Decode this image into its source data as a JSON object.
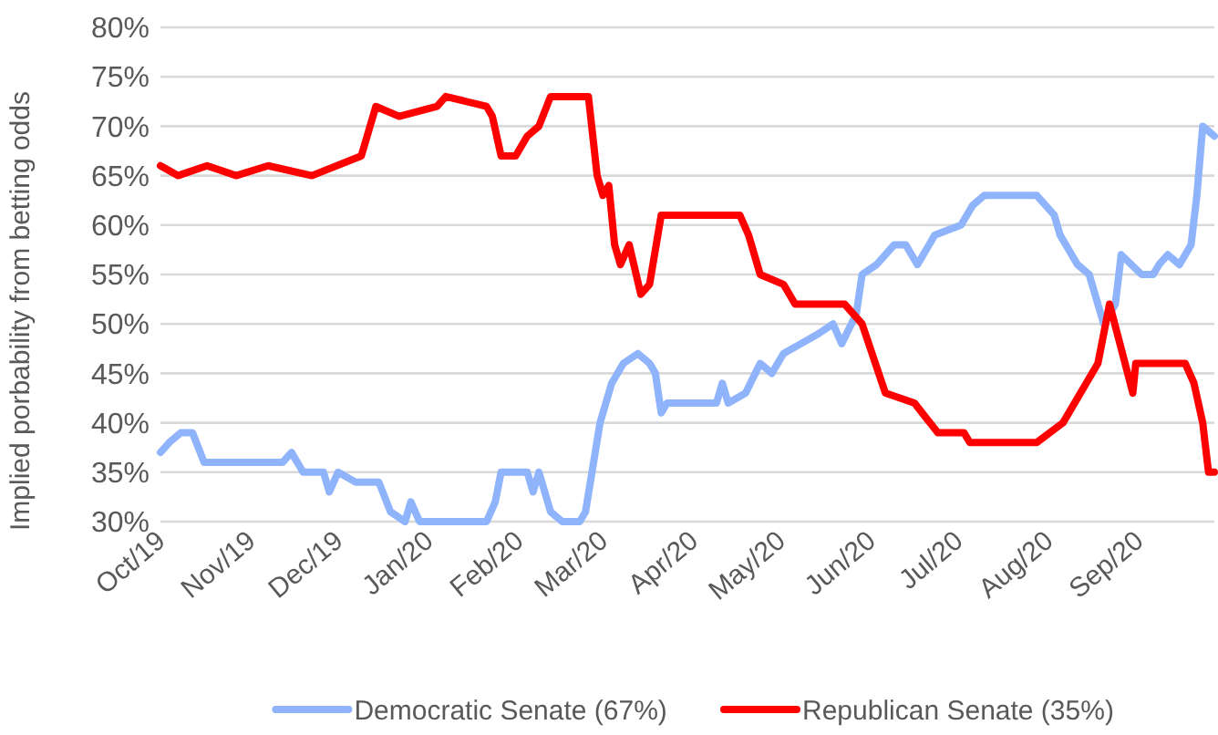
{
  "chart_data": {
    "type": "line",
    "ylabel": "Implied porbability from betting odds",
    "xlim": [
      "2019-09-29",
      "2020-09-25"
    ],
    "ylim": [
      30,
      80
    ],
    "yticks": [
      {
        "value": 30,
        "label": "30%"
      },
      {
        "value": 35,
        "label": "35%"
      },
      {
        "value": 40,
        "label": "40%"
      },
      {
        "value": 45,
        "label": "45%"
      },
      {
        "value": 50,
        "label": "50%"
      },
      {
        "value": 55,
        "label": "55%"
      },
      {
        "value": 60,
        "label": "60%"
      },
      {
        "value": 65,
        "label": "65%"
      },
      {
        "value": 70,
        "label": "70%"
      },
      {
        "value": 75,
        "label": "75%"
      },
      {
        "value": 80,
        "label": "80%"
      }
    ],
    "xticks": [
      {
        "value": "2019-10-01",
        "label": "Oct/19"
      },
      {
        "value": "2019-11-01",
        "label": "Nov/19"
      },
      {
        "value": "2019-12-01",
        "label": "Dec/19"
      },
      {
        "value": "2020-01-01",
        "label": "Jan/20"
      },
      {
        "value": "2020-02-01",
        "label": "Feb/20"
      },
      {
        "value": "2020-03-01",
        "label": "Mar/20"
      },
      {
        "value": "2020-04-01",
        "label": "Apr/20"
      },
      {
        "value": "2020-05-01",
        "label": "May/20"
      },
      {
        "value": "2020-06-01",
        "label": "Jun/20"
      },
      {
        "value": "2020-07-01",
        "label": "Jul/20"
      },
      {
        "value": "2020-08-01",
        "label": "Aug/20"
      },
      {
        "value": "2020-09-01",
        "label": "Sep/20"
      }
    ],
    "grid": "y",
    "legend": "bottom",
    "marker": "none",
    "line_style": "solid",
    "series": [
      {
        "name": "Democratic Senate (67%)",
        "color": "#8fb4fc",
        "x": [
          "2019-09-29",
          "2019-10-02",
          "2019-10-06",
          "2019-10-10",
          "2019-10-14",
          "2019-10-19",
          "2019-11-10",
          "2019-11-13",
          "2019-11-17",
          "2019-11-24",
          "2019-11-26",
          "2019-11-29",
          "2019-12-05",
          "2019-12-13",
          "2019-12-17",
          "2019-12-22",
          "2019-12-24",
          "2019-12-27",
          "2020-01-19",
          "2020-01-22",
          "2020-01-24",
          "2020-02-02",
          "2020-02-04",
          "2020-02-06",
          "2020-02-10",
          "2020-02-14",
          "2020-02-20",
          "2020-02-22",
          "2020-02-27",
          "2020-03-02",
          "2020-03-06",
          "2020-03-11",
          "2020-03-15",
          "2020-03-17",
          "2020-03-19",
          "2020-03-21",
          "2020-04-07",
          "2020-04-09",
          "2020-04-11",
          "2020-04-17",
          "2020-04-22",
          "2020-04-26",
          "2020-04-30",
          "2020-05-06",
          "2020-05-12",
          "2020-05-17",
          "2020-05-20",
          "2020-05-25",
          "2020-05-27",
          "2020-06-01",
          "2020-06-07",
          "2020-06-11",
          "2020-06-15",
          "2020-06-21",
          "2020-06-30",
          "2020-07-04",
          "2020-07-08",
          "2020-07-26",
          "2020-08-01",
          "2020-08-03",
          "2020-08-05",
          "2020-08-09",
          "2020-08-13",
          "2020-08-18",
          "2020-08-22",
          "2020-08-24",
          "2020-08-31",
          "2020-09-04",
          "2020-09-06",
          "2020-09-09",
          "2020-09-13",
          "2020-09-17",
          "2020-09-19",
          "2020-09-21",
          "2020-09-25"
        ],
        "values": [
          37,
          38,
          39,
          39,
          36,
          36,
          36,
          37,
          35,
          35,
          33,
          35,
          34,
          34,
          31,
          30,
          32,
          30,
          30,
          32,
          35,
          35,
          33,
          35,
          31,
          30,
          30,
          31,
          40,
          44,
          46,
          47,
          46,
          45,
          41,
          42,
          42,
          44,
          42,
          43,
          46,
          45,
          47,
          48,
          49,
          50,
          48,
          51,
          55,
          56,
          58,
          58,
          56,
          59,
          60,
          62,
          63,
          63,
          61,
          59,
          58,
          56,
          55,
          50,
          52,
          57,
          55,
          55,
          56,
          57,
          56,
          58,
          63,
          70,
          69
        ]
      },
      {
        "name": "Republican Senate (35%)",
        "color": "#ff0000",
        "x": [
          "2019-09-29",
          "2019-10-05",
          "2019-10-15",
          "2019-10-25",
          "2019-11-05",
          "2019-11-20",
          "2019-12-07",
          "2019-12-12",
          "2019-12-20",
          "2020-01-02",
          "2020-01-05",
          "2020-01-19",
          "2020-01-21",
          "2020-01-24",
          "2020-01-29",
          "2020-02-02",
          "2020-02-06",
          "2020-02-10",
          "2020-02-23",
          "2020-02-26",
          "2020-02-28",
          "2020-03-01",
          "2020-03-03",
          "2020-03-05",
          "2020-03-08",
          "2020-03-12",
          "2020-03-15",
          "2020-03-19",
          "2020-04-15",
          "2020-04-18",
          "2020-04-22",
          "2020-04-30",
          "2020-05-04",
          "2020-05-21",
          "2020-05-27",
          "2020-06-04",
          "2020-06-14",
          "2020-06-22",
          "2020-07-01",
          "2020-07-03",
          "2020-07-26",
          "2020-08-04",
          "2020-08-12",
          "2020-08-16",
          "2020-08-20",
          "2020-08-28",
          "2020-08-29",
          "2020-09-15",
          "2020-09-18",
          "2020-09-21",
          "2020-09-23",
          "2020-09-25"
        ],
        "values": [
          66,
          65,
          66,
          65,
          66,
          65,
          67,
          72,
          71,
          72,
          73,
          72,
          71,
          67,
          67,
          69,
          70,
          73,
          73,
          65,
          63,
          64,
          58,
          56,
          58,
          53,
          54,
          61,
          61,
          59,
          55,
          54,
          52,
          52,
          50,
          43,
          42,
          39,
          39,
          38,
          38,
          40,
          44,
          46,
          52,
          43,
          46,
          46,
          44,
          40,
          35,
          35
        ]
      }
    ]
  }
}
